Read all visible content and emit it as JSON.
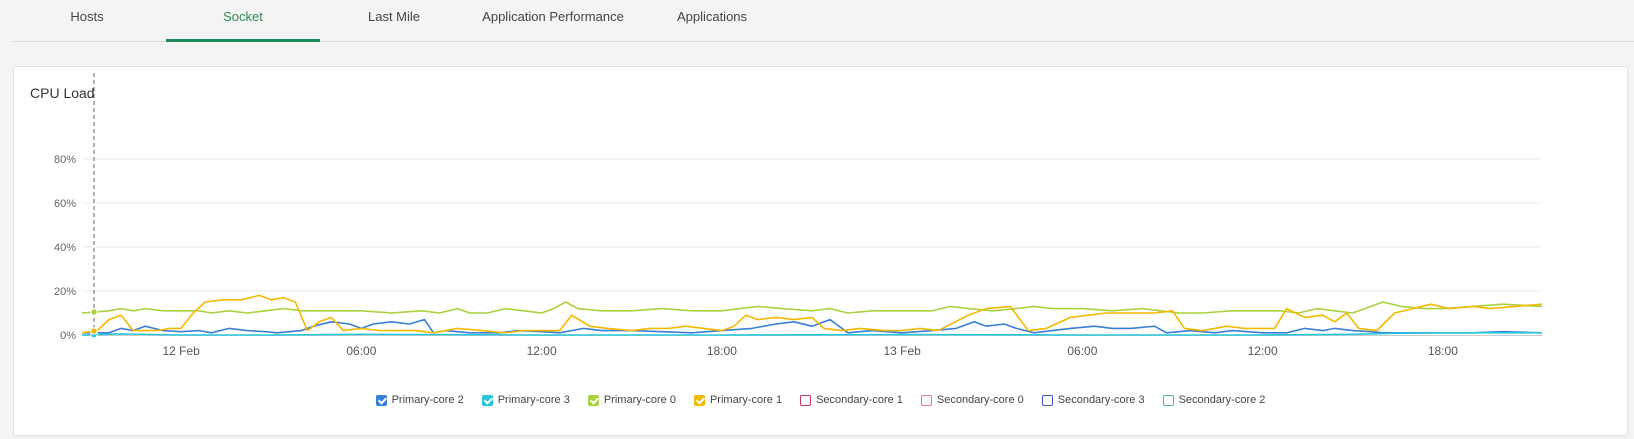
{
  "tabs": [
    {
      "label": "Hosts",
      "active": false
    },
    {
      "label": "Socket",
      "active": true
    },
    {
      "label": "Last Mile",
      "active": false
    },
    {
      "label": "Application Performance",
      "active": false
    },
    {
      "label": "Applications",
      "active": false
    }
  ],
  "card": {
    "title": "CPU Load"
  },
  "colors": {
    "tab_active": "#2e8b57",
    "tab_underline": "#1e8a5a",
    "grid": "#e8e8e8"
  },
  "chart_data": {
    "type": "line",
    "title": "CPU Load",
    "xlabel": "",
    "ylabel": "",
    "ylim": [
      0,
      100
    ],
    "y_ticks": [
      {
        "value": 0,
        "label": "0%"
      },
      {
        "value": 20,
        "label": "20%"
      },
      {
        "value": 40,
        "label": "40%"
      },
      {
        "value": 60,
        "label": "60%"
      },
      {
        "value": 80,
        "label": "80%"
      }
    ],
    "x_range_hours": [
      -3.3,
      45.3
    ],
    "x_ticks": [
      {
        "value": 0,
        "label": "12 Feb"
      },
      {
        "value": 6,
        "label": "06:00"
      },
      {
        "value": 12,
        "label": "12:00"
      },
      {
        "value": 18,
        "label": "18:00"
      },
      {
        "value": 24,
        "label": "13 Feb"
      },
      {
        "value": 30,
        "label": "06:00"
      },
      {
        "value": 36,
        "label": "12:00"
      },
      {
        "value": 42,
        "label": "18:00"
      }
    ],
    "grid": true,
    "legend_position": "bottom",
    "cursor_x": -2.9,
    "series": [
      {
        "name": "Primary-core 2",
        "color": "#3a7fd5",
        "checked": true,
        "points": [
          [
            -3.3,
            1
          ],
          [
            -2.4,
            1
          ],
          [
            -2.0,
            3
          ],
          [
            -1.6,
            2
          ],
          [
            -1.2,
            4
          ],
          [
            -0.6,
            2
          ],
          [
            0,
            1.5
          ],
          [
            0.6,
            2
          ],
          [
            1.0,
            1
          ],
          [
            1.6,
            3
          ],
          [
            2.2,
            2
          ],
          [
            2.8,
            1.5
          ],
          [
            3.2,
            1
          ],
          [
            4.0,
            2
          ],
          [
            4.4,
            4
          ],
          [
            5.0,
            6
          ],
          [
            5.6,
            5
          ],
          [
            6.0,
            3
          ],
          [
            6.4,
            5
          ],
          [
            7.0,
            6
          ],
          [
            7.6,
            5
          ],
          [
            8.1,
            7
          ],
          [
            8.4,
            1
          ],
          [
            8.8,
            2
          ],
          [
            9.6,
            1
          ],
          [
            10.6,
            1
          ],
          [
            11.2,
            2
          ],
          [
            12.0,
            1.5
          ],
          [
            12.6,
            1
          ],
          [
            13.4,
            3
          ],
          [
            14.0,
            2
          ],
          [
            15.0,
            2
          ],
          [
            16.0,
            1.5
          ],
          [
            17.0,
            1
          ],
          [
            18.0,
            2
          ],
          [
            19.0,
            3
          ],
          [
            19.8,
            5
          ],
          [
            20.4,
            6
          ],
          [
            21.0,
            4
          ],
          [
            21.6,
            7
          ],
          [
            22.2,
            1
          ],
          [
            23.0,
            2
          ],
          [
            24.0,
            1
          ],
          [
            25.0,
            2
          ],
          [
            25.8,
            3
          ],
          [
            26.4,
            6
          ],
          [
            26.8,
            4
          ],
          [
            27.4,
            5
          ],
          [
            27.8,
            3
          ],
          [
            28.4,
            1
          ],
          [
            29.0,
            2
          ],
          [
            29.6,
            3
          ],
          [
            30.4,
            4
          ],
          [
            31.0,
            3
          ],
          [
            31.6,
            3
          ],
          [
            32.4,
            4
          ],
          [
            32.8,
            1
          ],
          [
            33.6,
            2
          ],
          [
            34.4,
            1
          ],
          [
            35.0,
            2
          ],
          [
            36.0,
            1
          ],
          [
            36.8,
            1
          ],
          [
            37.4,
            3
          ],
          [
            38.0,
            2
          ],
          [
            38.4,
            3
          ],
          [
            39.0,
            2
          ],
          [
            39.6,
            1.5
          ],
          [
            40.0,
            1
          ],
          [
            41.0,
            1
          ],
          [
            42.0,
            1
          ],
          [
            43.0,
            1
          ],
          [
            44.0,
            1.5
          ],
          [
            45.3,
            1
          ]
        ]
      },
      {
        "name": "Primary-core 3",
        "color": "#26c6da",
        "checked": true,
        "points": [
          [
            -3.3,
            0
          ],
          [
            -2.0,
            0.5
          ],
          [
            0,
            0
          ],
          [
            3.0,
            0
          ],
          [
            6.0,
            0.3
          ],
          [
            12.0,
            0
          ],
          [
            18.0,
            0
          ],
          [
            24.0,
            0.2
          ],
          [
            30.0,
            0
          ],
          [
            36.0,
            0
          ],
          [
            39.0,
            0.3
          ],
          [
            40.5,
            0.8
          ],
          [
            42.0,
            1
          ],
          [
            45.3,
            1
          ]
        ]
      },
      {
        "name": "Primary-core 0",
        "color": "#a9d23c",
        "checked": true,
        "points": [
          [
            -3.3,
            10
          ],
          [
            -2.4,
            11
          ],
          [
            -2.0,
            12
          ],
          [
            -1.6,
            11
          ],
          [
            -1.2,
            12
          ],
          [
            -0.6,
            11
          ],
          [
            0,
            11
          ],
          [
            0.6,
            11
          ],
          [
            1.0,
            10
          ],
          [
            1.6,
            11
          ],
          [
            2.2,
            10
          ],
          [
            2.8,
            11
          ],
          [
            3.4,
            12
          ],
          [
            4.0,
            11
          ],
          [
            5.0,
            11
          ],
          [
            6.0,
            11
          ],
          [
            7.0,
            10
          ],
          [
            8.0,
            11
          ],
          [
            8.6,
            10
          ],
          [
            9.2,
            12
          ],
          [
            9.6,
            10
          ],
          [
            10.2,
            10
          ],
          [
            10.8,
            12
          ],
          [
            11.4,
            11
          ],
          [
            12.0,
            10
          ],
          [
            12.4,
            12
          ],
          [
            12.8,
            15
          ],
          [
            13.2,
            12
          ],
          [
            14.0,
            11
          ],
          [
            15.0,
            11
          ],
          [
            16.0,
            12
          ],
          [
            17.0,
            11
          ],
          [
            18.0,
            11
          ],
          [
            18.6,
            12
          ],
          [
            19.2,
            13
          ],
          [
            20.0,
            12
          ],
          [
            21.0,
            11
          ],
          [
            21.6,
            12
          ],
          [
            22.2,
            10
          ],
          [
            23.0,
            11
          ],
          [
            24.0,
            11
          ],
          [
            25.0,
            11
          ],
          [
            25.6,
            13
          ],
          [
            26.2,
            12
          ],
          [
            27.0,
            11
          ],
          [
            27.8,
            12
          ],
          [
            28.4,
            13
          ],
          [
            29.0,
            12
          ],
          [
            30.0,
            12
          ],
          [
            31.0,
            11
          ],
          [
            32.0,
            12
          ],
          [
            32.6,
            11
          ],
          [
            33.2,
            10
          ],
          [
            34.0,
            10
          ],
          [
            35.0,
            11
          ],
          [
            36.0,
            11
          ],
          [
            36.6,
            11
          ],
          [
            37.2,
            10
          ],
          [
            37.8,
            12
          ],
          [
            38.4,
            11
          ],
          [
            39.0,
            10
          ],
          [
            39.4,
            12
          ],
          [
            40.0,
            15
          ],
          [
            40.6,
            13
          ],
          [
            41.4,
            12
          ],
          [
            42.0,
            12
          ],
          [
            43.0,
            13
          ],
          [
            44.0,
            14
          ],
          [
            45.3,
            13
          ]
        ]
      },
      {
        "name": "Primary-core 1",
        "color": "#f5b800",
        "checked": true,
        "points": [
          [
            -3.3,
            1
          ],
          [
            -2.8,
            2
          ],
          [
            -2.4,
            7
          ],
          [
            -2.0,
            9
          ],
          [
            -1.6,
            2
          ],
          [
            -0.8,
            2
          ],
          [
            -0.4,
            3
          ],
          [
            0,
            3
          ],
          [
            0.4,
            10
          ],
          [
            0.8,
            15
          ],
          [
            1.4,
            16
          ],
          [
            2.0,
            16
          ],
          [
            2.6,
            18
          ],
          [
            3.0,
            16
          ],
          [
            3.4,
            17
          ],
          [
            3.8,
            15
          ],
          [
            4.2,
            2
          ],
          [
            4.6,
            6
          ],
          [
            5.0,
            8
          ],
          [
            5.4,
            2
          ],
          [
            6.0,
            3
          ],
          [
            6.6,
            2
          ],
          [
            7.2,
            2
          ],
          [
            7.8,
            2
          ],
          [
            8.4,
            1
          ],
          [
            9.2,
            3
          ],
          [
            10.0,
            2
          ],
          [
            10.8,
            1
          ],
          [
            11.4,
            2
          ],
          [
            12.0,
            2
          ],
          [
            12.6,
            2
          ],
          [
            13.0,
            9
          ],
          [
            13.6,
            4
          ],
          [
            14.2,
            3
          ],
          [
            15.0,
            2
          ],
          [
            15.6,
            3
          ],
          [
            16.2,
            3
          ],
          [
            16.8,
            4
          ],
          [
            17.4,
            3
          ],
          [
            18.0,
            2
          ],
          [
            18.4,
            4
          ],
          [
            18.8,
            9
          ],
          [
            19.2,
            7
          ],
          [
            19.8,
            8
          ],
          [
            20.4,
            7
          ],
          [
            21.0,
            8
          ],
          [
            21.4,
            3
          ],
          [
            22.0,
            2
          ],
          [
            22.6,
            3
          ],
          [
            23.4,
            2
          ],
          [
            24.0,
            2
          ],
          [
            24.6,
            3
          ],
          [
            25.2,
            2
          ],
          [
            26.2,
            9
          ],
          [
            26.8,
            12
          ],
          [
            27.6,
            13
          ],
          [
            28.2,
            2
          ],
          [
            28.8,
            3
          ],
          [
            29.6,
            8
          ],
          [
            30.2,
            9
          ],
          [
            30.8,
            10
          ],
          [
            31.6,
            10
          ],
          [
            32.4,
            10
          ],
          [
            33.0,
            11
          ],
          [
            33.4,
            3
          ],
          [
            34.0,
            2
          ],
          [
            34.8,
            4
          ],
          [
            35.4,
            3
          ],
          [
            36.0,
            3
          ],
          [
            36.4,
            3
          ],
          [
            36.8,
            12
          ],
          [
            37.4,
            8
          ],
          [
            38.0,
            9
          ],
          [
            38.4,
            6
          ],
          [
            38.8,
            10
          ],
          [
            39.2,
            3
          ],
          [
            39.8,
            2
          ],
          [
            40.4,
            10
          ],
          [
            41.0,
            12
          ],
          [
            41.6,
            14
          ],
          [
            42.2,
            12
          ],
          [
            43.0,
            13
          ],
          [
            43.6,
            12
          ],
          [
            44.4,
            13
          ],
          [
            45.3,
            14
          ]
        ]
      },
      {
        "name": "Secondary-core 1",
        "color": "#c9306c",
        "checked": false,
        "points": []
      },
      {
        "name": "Secondary-core 0",
        "color": "#e8768c",
        "checked": false,
        "points": []
      },
      {
        "name": "Secondary-core 3",
        "color": "#3f51b5",
        "checked": false,
        "points": []
      },
      {
        "name": "Secondary-core 2",
        "color": "#4db6ac",
        "checked": false,
        "points": []
      }
    ]
  }
}
